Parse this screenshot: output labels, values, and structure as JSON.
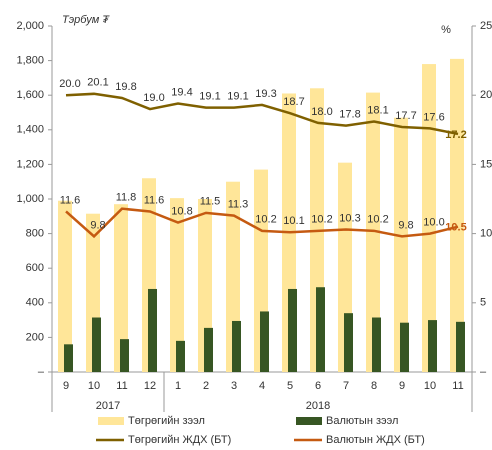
{
  "chart_data": {
    "type": "bar_line",
    "y_label": "Тэрбум ₮",
    "y2_label": "%",
    "categories": [
      "9",
      "10",
      "11",
      "12",
      "1",
      "2",
      "3",
      "4",
      "5",
      "6",
      "7",
      "8",
      "9",
      "10",
      "11"
    ],
    "groups": [
      "2017",
      "2018"
    ],
    "ylim": [
      0,
      2000
    ],
    "yticks": [
      {
        "value": 0,
        "label": "–"
      },
      200,
      400,
      600,
      800,
      {
        "value": 1000,
        "label": "1,000"
      },
      {
        "value": 1200,
        "label": "1,200"
      },
      {
        "value": 1400,
        "label": "1,400"
      },
      {
        "value": 1600,
        "label": "1,600"
      },
      {
        "value": 1800,
        "label": "1,800"
      },
      {
        "value": 2000,
        "label": "2,000"
      }
    ],
    "y2lim": [
      0,
      25
    ],
    "y2ticks": [
      {
        "value": 0,
        "label": "–"
      },
      5,
      10,
      15,
      20,
      25
    ],
    "series": [
      {
        "name": "Төгрөгийн зээл",
        "type": "bar",
        "color": "#ffe699",
        "values": [
          990,
          915,
          970,
          1120,
          1005,
          1000,
          1100,
          1170,
          1610,
          1640,
          1210,
          1615,
          1470,
          1780,
          1810
        ]
      },
      {
        "name": "Валютын зээл",
        "type": "bar",
        "color": "#375623",
        "values": [
          160,
          315,
          190,
          480,
          180,
          255,
          295,
          350,
          480,
          490,
          340,
          315,
          285,
          300,
          290
        ]
      },
      {
        "name": "Төгрөгийн ЖДХ (БТ)",
        "type": "line",
        "axis": "y2",
        "color": "#7f6000",
        "values": [
          20.0,
          20.1,
          19.8,
          19.0,
          19.4,
          19.1,
          19.1,
          19.3,
          18.7,
          18.0,
          17.8,
          18.1,
          17.7,
          17.6,
          17.2
        ],
        "value_labels": [
          "20.0",
          "20.1",
          "19.8",
          "19.0",
          "19.4",
          "19.1",
          "19.1",
          "19.3",
          "18.7",
          "18.0",
          "17.8",
          "18.1",
          "17.7",
          "17.6",
          "17.2"
        ]
      },
      {
        "name": "Валютын ЖДХ (БТ)",
        "type": "line",
        "axis": "y2",
        "color": "#c55a11",
        "values": [
          11.6,
          9.8,
          11.8,
          11.6,
          10.8,
          11.5,
          11.3,
          10.2,
          10.1,
          10.2,
          10.3,
          10.2,
          9.8,
          10.0,
          10.5
        ],
        "value_labels": [
          "11.6",
          "9.8",
          "11.8",
          "11.6",
          "10.8",
          "11.5",
          "11.3",
          "10.2",
          "10.1",
          "10.2",
          "10.3",
          "10.2",
          "9.8",
          "10.0",
          "10.5"
        ]
      }
    ]
  }
}
